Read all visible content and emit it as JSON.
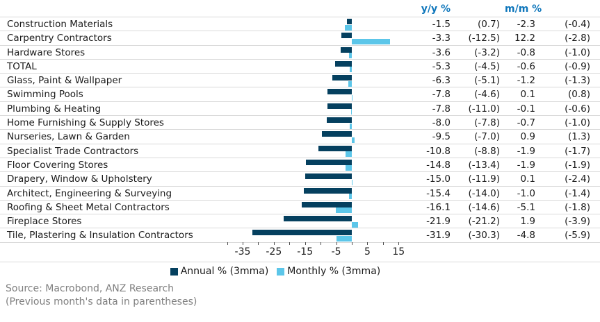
{
  "colors": {
    "annual": "#05405f",
    "monthly": "#5cc6e9",
    "header_blue": "#0e76bb",
    "gridline": "#d9d9d9",
    "text": "#1a1a1a",
    "footer_gray": "#7f7f7f"
  },
  "header": {
    "yoy_label": "y/y %",
    "mom_label": "m/m %"
  },
  "chart_data": {
    "type": "bar",
    "orientation": "horizontal",
    "title": "",
    "xlabel": "",
    "ylabel": "",
    "axis": {
      "min": -40,
      "max": 15,
      "labeled_ticks": [
        -35,
        -25,
        -15,
        -5,
        5,
        15
      ],
      "minor_tick_step": 5,
      "grid": false
    },
    "legend_position": "bottom",
    "legend": [
      {
        "label": "Annual % (3mma)",
        "color_key": "annual"
      },
      {
        "label": "Monthly % (3mma)",
        "color_key": "monthly"
      }
    ],
    "categories": [
      "Construction Materials",
      "Carpentry Contractors",
      "Hardware Stores",
      "TOTAL",
      "Glass, Paint & Wallpaper",
      "Swimming Pools",
      "Plumbing & Heating",
      "Home Furnishing & Supply Stores",
      "Nurseries, Lawn & Garden",
      "Specialist Trade Contractors",
      "Floor Covering Stores",
      "Drapery, Window & Upholstery",
      "Architect, Engineering & Surveying",
      "Roofing & Sheet Metal Contractors",
      "Fireplace Stores",
      "Tile, Plastering & Insulation Contractors"
    ],
    "series": [
      {
        "name": "Annual % (3mma)",
        "values": [
          -1.5,
          -3.3,
          -3.6,
          -5.3,
          -6.3,
          -7.8,
          -7.8,
          -8.0,
          -9.5,
          -10.8,
          -14.8,
          -15.0,
          -15.4,
          -16.1,
          -21.9,
          -31.9
        ]
      },
      {
        "name": "Monthly % (3mma)",
        "values": [
          -2.3,
          12.2,
          -0.8,
          -0.6,
          -1.2,
          0.1,
          -0.1,
          -0.7,
          0.9,
          -1.9,
          -1.9,
          0.1,
          -1.0,
          -5.1,
          1.9,
          -4.8
        ]
      }
    ],
    "rows": [
      {
        "label": "Construction Materials",
        "yy": -1.5,
        "yy_prev": 0.7,
        "mm": -2.3,
        "mm_prev": -0.4
      },
      {
        "label": "Carpentry Contractors",
        "yy": -3.3,
        "yy_prev": -12.5,
        "mm": 12.2,
        "mm_prev": -2.8
      },
      {
        "label": "Hardware Stores",
        "yy": -3.6,
        "yy_prev": -3.2,
        "mm": -0.8,
        "mm_prev": -1.0
      },
      {
        "label": "TOTAL",
        "yy": -5.3,
        "yy_prev": -4.5,
        "mm": -0.6,
        "mm_prev": -0.9
      },
      {
        "label": "Glass, Paint & Wallpaper",
        "yy": -6.3,
        "yy_prev": -5.1,
        "mm": -1.2,
        "mm_prev": -1.3
      },
      {
        "label": "Swimming Pools",
        "yy": -7.8,
        "yy_prev": -4.6,
        "mm": 0.1,
        "mm_prev": 0.8
      },
      {
        "label": "Plumbing & Heating",
        "yy": -7.8,
        "yy_prev": -11.0,
        "mm": -0.1,
        "mm_prev": -0.6
      },
      {
        "label": "Home Furnishing & Supply Stores",
        "yy": -8.0,
        "yy_prev": -7.8,
        "mm": -0.7,
        "mm_prev": -1.0
      },
      {
        "label": "Nurseries, Lawn & Garden",
        "yy": -9.5,
        "yy_prev": -7.0,
        "mm": 0.9,
        "mm_prev": 1.3
      },
      {
        "label": "Specialist Trade Contractors",
        "yy": -10.8,
        "yy_prev": -8.8,
        "mm": -1.9,
        "mm_prev": -1.7
      },
      {
        "label": "Floor Covering Stores",
        "yy": -14.8,
        "yy_prev": -13.4,
        "mm": -1.9,
        "mm_prev": -1.9
      },
      {
        "label": "Drapery, Window & Upholstery",
        "yy": -15.0,
        "yy_prev": -11.9,
        "mm": 0.1,
        "mm_prev": -2.4
      },
      {
        "label": "Architect, Engineering & Surveying",
        "yy": -15.4,
        "yy_prev": -14.0,
        "mm": -1.0,
        "mm_prev": -1.4
      },
      {
        "label": "Roofing & Sheet Metal Contractors",
        "yy": -16.1,
        "yy_prev": -14.6,
        "mm": -5.1,
        "mm_prev": -1.8
      },
      {
        "label": "Fireplace Stores",
        "yy": -21.9,
        "yy_prev": -21.2,
        "mm": 1.9,
        "mm_prev": -3.9
      },
      {
        "label": "Tile, Plastering & Insulation Contractors",
        "yy": -31.9,
        "yy_prev": -30.3,
        "mm": -4.8,
        "mm_prev": -5.9
      }
    ]
  },
  "footer": {
    "source": "Source: Macrobond, ANZ Research",
    "note": "(Previous month's data in parentheses)"
  }
}
